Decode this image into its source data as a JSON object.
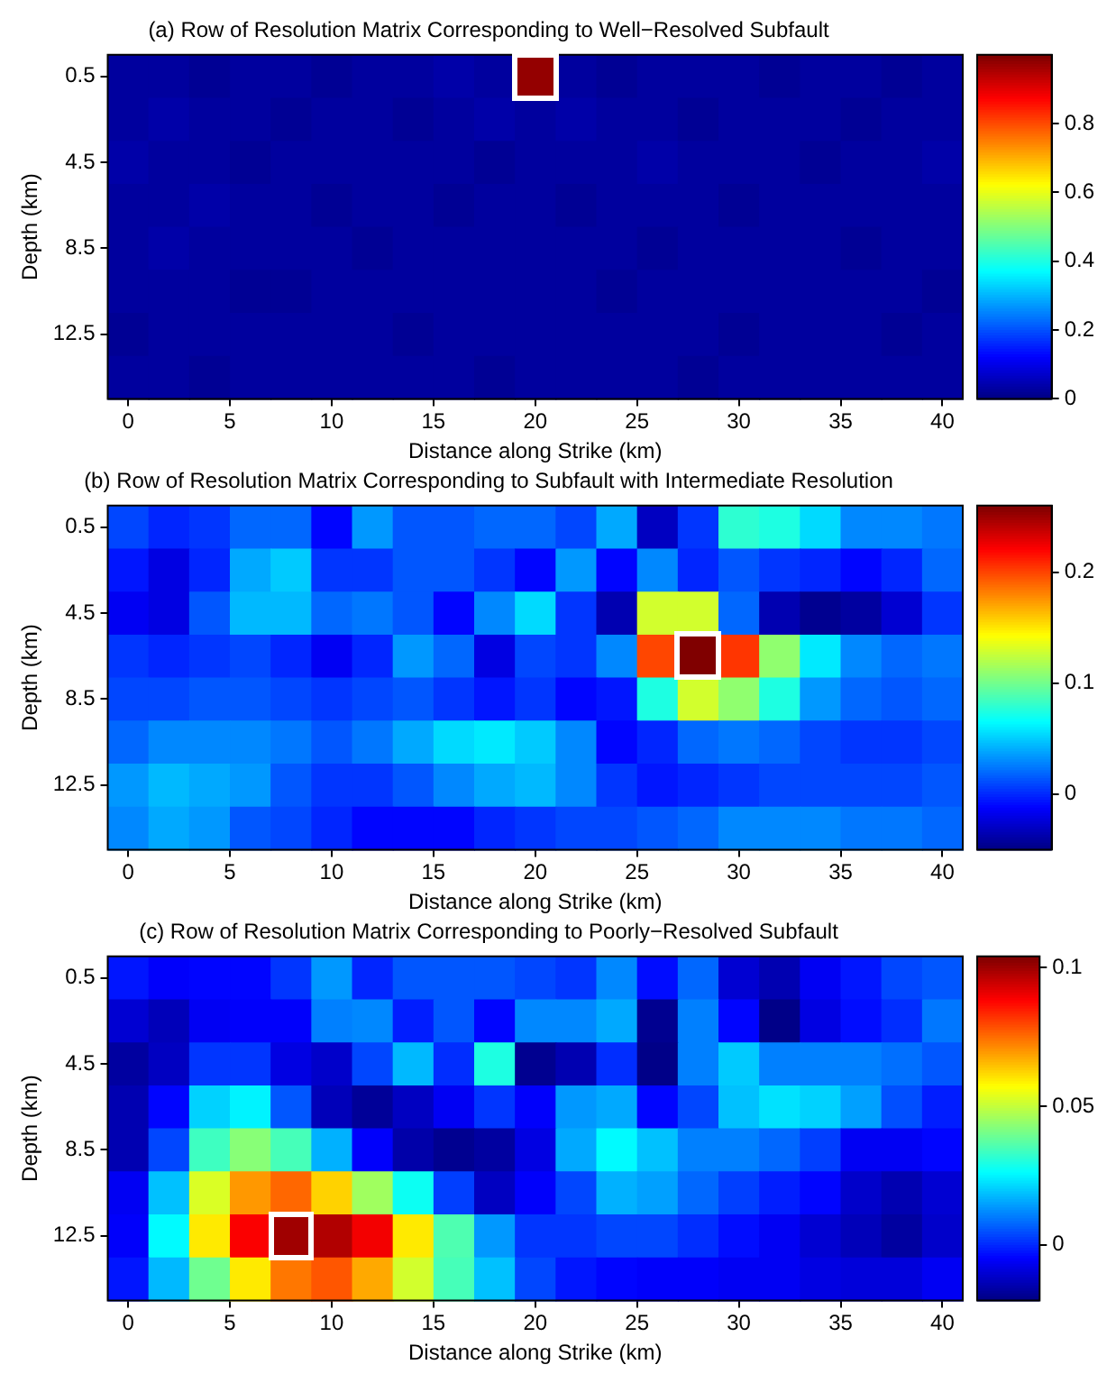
{
  "chart_data": [
    {
      "type": "heatmap",
      "title": "(a) Row of Resolution Matrix Corresponding to Well−Resolved Subfault",
      "xlabel": "Distance along Strike (km)",
      "ylabel": "Depth (km)",
      "x": [
        0,
        2,
        4,
        6,
        8,
        10,
        12,
        14,
        16,
        18,
        20,
        22,
        24,
        26,
        28,
        30,
        32,
        34,
        36,
        38,
        40
      ],
      "xlim": [
        -1,
        41
      ],
      "xticks": [
        0,
        5,
        10,
        15,
        20,
        25,
        30,
        35,
        40
      ],
      "y_categories": [
        "0.5",
        null,
        "4.5",
        null,
        "8.5",
        null,
        "12.5",
        null
      ],
      "clim": [
        0,
        1
      ],
      "cticks": [
        0,
        0.2,
        0.4,
        0.6,
        0.8
      ],
      "cells": [
        [
          0.03,
          0.03,
          0.02,
          0.03,
          0.03,
          0.02,
          0.03,
          0.03,
          0.04,
          0.03,
          0.98,
          0.03,
          0.02,
          0.03,
          0.03,
          0.03,
          0.02,
          0.03,
          0.03,
          0.02,
          0.03
        ],
        [
          0.03,
          0.04,
          0.03,
          0.03,
          0.02,
          0.03,
          0.03,
          0.02,
          0.03,
          0.04,
          0.03,
          0.04,
          0.03,
          0.03,
          0.02,
          0.03,
          0.03,
          0.03,
          0.02,
          0.03,
          0.03
        ],
        [
          0.04,
          0.03,
          0.03,
          0.02,
          0.03,
          0.03,
          0.03,
          0.03,
          0.03,
          0.02,
          0.03,
          0.03,
          0.03,
          0.04,
          0.03,
          0.03,
          0.03,
          0.02,
          0.03,
          0.03,
          0.04
        ],
        [
          0.03,
          0.03,
          0.04,
          0.03,
          0.03,
          0.02,
          0.03,
          0.03,
          0.02,
          0.03,
          0.03,
          0.02,
          0.03,
          0.03,
          0.03,
          0.02,
          0.03,
          0.03,
          0.03,
          0.03,
          0.03
        ],
        [
          0.03,
          0.04,
          0.03,
          0.03,
          0.03,
          0.03,
          0.02,
          0.03,
          0.03,
          0.03,
          0.03,
          0.03,
          0.03,
          0.02,
          0.03,
          0.03,
          0.03,
          0.03,
          0.02,
          0.03,
          0.03
        ],
        [
          0.03,
          0.03,
          0.03,
          0.02,
          0.02,
          0.03,
          0.03,
          0.03,
          0.03,
          0.03,
          0.03,
          0.03,
          0.02,
          0.03,
          0.03,
          0.03,
          0.03,
          0.03,
          0.03,
          0.03,
          0.02
        ],
        [
          0.02,
          0.03,
          0.03,
          0.03,
          0.03,
          0.03,
          0.03,
          0.02,
          0.03,
          0.03,
          0.03,
          0.03,
          0.03,
          0.03,
          0.03,
          0.02,
          0.03,
          0.03,
          0.03,
          0.02,
          0.03
        ],
        [
          0.03,
          0.03,
          0.02,
          0.03,
          0.03,
          0.03,
          0.03,
          0.03,
          0.03,
          0.02,
          0.03,
          0.03,
          0.03,
          0.03,
          0.02,
          0.03,
          0.03,
          0.03,
          0.03,
          0.03,
          0.03
        ]
      ]
    },
    {
      "type": "heatmap",
      "title": "(b) Row of Resolution Matrix Corresponding to Subfault with Intermediate Resolution",
      "xlabel": "Distance along Strike (km)",
      "ylabel": "Depth (km)",
      "x": [
        0,
        2,
        4,
        6,
        8,
        10,
        12,
        14,
        16,
        18,
        20,
        22,
        24,
        26,
        28,
        30,
        32,
        34,
        36,
        38,
        40
      ],
      "xlim": [
        -1,
        41
      ],
      "xticks": [
        0,
        5,
        10,
        15,
        20,
        25,
        30,
        35,
        40
      ],
      "y_categories": [
        "0.5",
        null,
        "4.5",
        null,
        "8.5",
        null,
        "12.5",
        null
      ],
      "clim": [
        -0.05,
        0.26
      ],
      "cticks": [
        0,
        0.1,
        0.2
      ],
      "cells": [
        [
          0.01,
          0,
          0.005,
          0.02,
          0.02,
          -0.01,
          0.035,
          0.015,
          0.015,
          0.02,
          0.02,
          0.01,
          0.04,
          -0.03,
          0.005,
          0.08,
          0.075,
          0.055,
          0.03,
          0.03,
          0.025
        ],
        [
          -0.005,
          -0.02,
          0,
          0.04,
          0.05,
          0.005,
          0.005,
          0.015,
          0.015,
          0.005,
          -0.01,
          0.035,
          -0.01,
          0.03,
          0,
          0.015,
          0.005,
          0,
          -0.01,
          0,
          0.02
        ],
        [
          -0.015,
          -0.02,
          0.015,
          0.045,
          0.045,
          0.02,
          0.025,
          0.015,
          -0.01,
          0.03,
          0.055,
          0.005,
          -0.035,
          0.13,
          0.13,
          0.02,
          -0.035,
          -0.045,
          -0.04,
          -0.025,
          0.005
        ],
        [
          0.005,
          0,
          0.005,
          0.01,
          0,
          -0.015,
          0,
          0.035,
          0.02,
          -0.02,
          0.01,
          0.005,
          0.03,
          0.2,
          0.26,
          0.205,
          0.11,
          0.06,
          0.03,
          0.02,
          0.025
        ],
        [
          0.01,
          0.01,
          0.015,
          0.015,
          0.01,
          0.005,
          0.01,
          0.015,
          0.005,
          -0.005,
          0.005,
          -0.01,
          -0.005,
          0.075,
          0.13,
          0.11,
          0.075,
          0.035,
          0.02,
          0.015,
          0.02
        ],
        [
          0.02,
          0.03,
          0.03,
          0.03,
          0.025,
          0.015,
          0.025,
          0.04,
          0.055,
          0.06,
          0.05,
          0.03,
          -0.01,
          0,
          0.02,
          0.025,
          0.02,
          0.01,
          0.005,
          0.005,
          0.01
        ],
        [
          0.035,
          0.045,
          0.04,
          0.035,
          0.015,
          0.005,
          0.005,
          0.015,
          0.03,
          0.04,
          0.045,
          0.03,
          0.005,
          -0.005,
          0,
          0.005,
          0.01,
          0.01,
          0.01,
          0.01,
          0.015
        ],
        [
          0.03,
          0.04,
          0.035,
          0.015,
          0.01,
          0,
          -0.01,
          -0.01,
          -0.01,
          0,
          0.005,
          0.01,
          0.01,
          0.015,
          0.02,
          0.03,
          0.03,
          0.03,
          0.025,
          0.025,
          0.02
        ]
      ]
    },
    {
      "type": "heatmap",
      "title": "(c) Row of Resolution Matrix Corresponding to Poorly−Resolved Subfault",
      "xlabel": "Distance along Strike (km)",
      "ylabel": "Depth (km)",
      "x": [
        0,
        2,
        4,
        6,
        8,
        10,
        12,
        14,
        16,
        18,
        20,
        22,
        24,
        26,
        28,
        30,
        32,
        34,
        36,
        38,
        40
      ],
      "xlim": [
        -1,
        41
      ],
      "xticks": [
        0,
        5,
        10,
        15,
        20,
        25,
        30,
        35,
        40
      ],
      "y_categories": [
        "0.5",
        null,
        "4.5",
        null,
        "8.5",
        null,
        "12.5",
        null
      ],
      "clim": [
        -0.02,
        0.104
      ],
      "cticks": [
        0,
        0.05,
        0.1
      ],
      "cells": [
        [
          -0.002,
          -0.005,
          -0.004,
          -0.004,
          0.002,
          0.014,
          0,
          0.006,
          0.006,
          0.006,
          0.004,
          0.002,
          0.012,
          -0.003,
          0.008,
          -0.01,
          -0.014,
          -0.006,
          -0.002,
          0.004,
          0.006
        ],
        [
          -0.01,
          -0.013,
          -0.006,
          -0.005,
          -0.005,
          0.011,
          0.012,
          -0.001,
          0.006,
          -0.004,
          0.012,
          0.012,
          0.016,
          -0.018,
          0.011,
          -0.004,
          -0.019,
          -0.008,
          -0.003,
          0.001,
          0.01
        ],
        [
          -0.016,
          -0.012,
          0.002,
          0.002,
          -0.008,
          -0.011,
          0.004,
          0.018,
          0.001,
          0.03,
          -0.018,
          -0.014,
          0.001,
          -0.019,
          0.011,
          0.02,
          0.011,
          0.011,
          0.011,
          0.009,
          0.006
        ],
        [
          -0.014,
          -0.004,
          0.021,
          0.025,
          0.006,
          -0.013,
          -0.017,
          -0.012,
          -0.006,
          0.002,
          -0.005,
          0.014,
          0.016,
          -0.004,
          0.004,
          0.019,
          0.023,
          0.021,
          0.015,
          0.005,
          -0.001
        ],
        [
          -0.014,
          0.004,
          0.034,
          0.043,
          0.035,
          0.017,
          -0.005,
          -0.015,
          -0.018,
          -0.016,
          -0.008,
          0.016,
          0.026,
          0.019,
          0.011,
          0.011,
          0.008,
          0.003,
          -0.006,
          -0.006,
          -0.004
        ],
        [
          -0.006,
          0.019,
          0.053,
          0.07,
          0.076,
          0.063,
          0.046,
          0.028,
          0.003,
          -0.012,
          -0.005,
          0.004,
          0.017,
          0.015,
          0.008,
          0.003,
          -0.001,
          -0.004,
          -0.011,
          -0.014,
          -0.01
        ],
        [
          -0.005,
          0.026,
          0.06,
          0.089,
          0.1,
          0.098,
          0.09,
          0.06,
          0.036,
          0.014,
          0.002,
          0.002,
          0.004,
          0.004,
          0.001,
          -0.003,
          -0.006,
          -0.01,
          -0.013,
          -0.016,
          -0.011
        ],
        [
          -0.002,
          0.018,
          0.04,
          0.06,
          0.074,
          0.078,
          0.068,
          0.052,
          0.035,
          0.019,
          0.004,
          -0.002,
          -0.004,
          -0.005,
          -0.005,
          -0.006,
          -0.006,
          -0.008,
          -0.009,
          -0.009,
          -0.006
        ]
      ]
    }
  ]
}
